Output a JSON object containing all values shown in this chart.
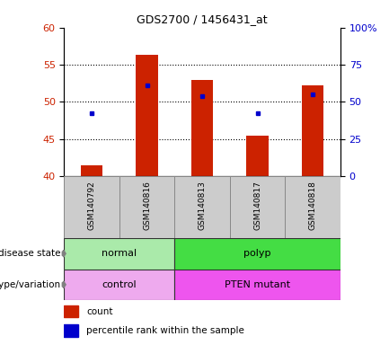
{
  "title": "GDS2700 / 1456431_at",
  "samples": [
    "GSM140792",
    "GSM140816",
    "GSM140813",
    "GSM140817",
    "GSM140818"
  ],
  "bar_bottoms": [
    40,
    40,
    40,
    40,
    40
  ],
  "bar_tops": [
    41.4,
    56.3,
    53.0,
    45.4,
    52.2
  ],
  "blue_dots": [
    48.5,
    52.2,
    50.8,
    48.5,
    51.0
  ],
  "ylim": [
    40,
    60
  ],
  "yticks_left": [
    40,
    45,
    50,
    55,
    60
  ],
  "yticks_right": [
    0,
    25,
    50,
    75,
    100
  ],
  "ytick_right_labels": [
    "0",
    "25",
    "50",
    "75",
    "100%"
  ],
  "bar_color": "#cc2200",
  "dot_color": "#0000cc",
  "left_axis_color": "#cc2200",
  "right_axis_color": "#0000cc",
  "fig_bg": "#ffffff",
  "ds_normal_color": "#aaeaaa",
  "ds_polyp_color": "#44dd44",
  "gv_control_color": "#eeaaee",
  "gv_pten_color": "#ee55ee",
  "sample_box_color": "#cccccc",
  "sample_box_edge": "#888888"
}
